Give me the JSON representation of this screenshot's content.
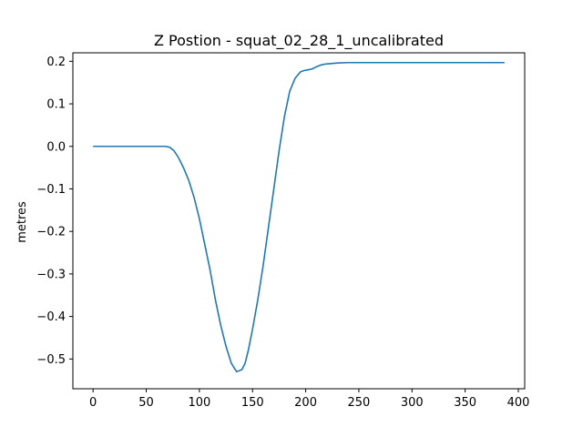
{
  "chart_data": {
    "type": "line",
    "title": "Z Postion - squat_02_28_1_uncalibrated",
    "xlabel": "",
    "ylabel": "metres",
    "xlim": [
      -19,
      406
    ],
    "ylim": [
      -0.57,
      0.22
    ],
    "xticks": [
      0,
      50,
      100,
      150,
      200,
      250,
      300,
      350,
      400
    ],
    "yticks": [
      0.2,
      0.1,
      0.0,
      -0.1,
      -0.2,
      -0.3,
      -0.4,
      -0.5
    ],
    "ytick_labels": [
      "0.2",
      "0.1",
      "0.0",
      "−0.1",
      "−0.2",
      "−0.3",
      "−0.4",
      "−0.5"
    ],
    "grid": false,
    "line_color": "#1f77b4",
    "series": [
      {
        "name": "",
        "x": [
          0,
          20,
          40,
          60,
          68,
          72,
          76,
          80,
          85,
          90,
          95,
          100,
          105,
          110,
          115,
          120,
          125,
          130,
          135,
          140,
          143,
          146,
          150,
          155,
          160,
          165,
          170,
          175,
          180,
          185,
          190,
          195,
          198,
          202,
          206,
          210,
          215,
          220,
          225,
          230,
          240,
          250,
          300,
          350,
          387
        ],
        "y": [
          0.0,
          0.0,
          0.0,
          0.0,
          0.0,
          -0.002,
          -0.01,
          -0.025,
          -0.05,
          -0.08,
          -0.12,
          -0.17,
          -0.23,
          -0.29,
          -0.36,
          -0.42,
          -0.47,
          -0.51,
          -0.53,
          -0.525,
          -0.51,
          -0.48,
          -0.43,
          -0.36,
          -0.28,
          -0.19,
          -0.1,
          -0.01,
          0.07,
          0.13,
          0.16,
          0.175,
          0.178,
          0.18,
          0.182,
          0.187,
          0.192,
          0.194,
          0.195,
          0.196,
          0.197,
          0.197,
          0.197,
          0.197,
          0.197
        ]
      }
    ]
  }
}
